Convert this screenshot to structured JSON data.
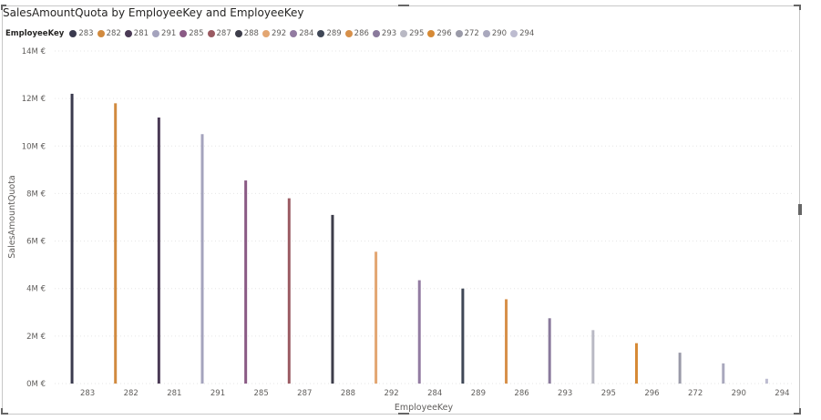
{
  "visual": {
    "title": "SalesAmountQuota by EmployeeKey and EmployeeKey"
  },
  "legend": {
    "title": "EmployeeKey",
    "items": [
      {
        "label": "283",
        "color": "#3a3a4e"
      },
      {
        "label": "282",
        "color": "#d18a3f"
      },
      {
        "label": "281",
        "color": "#4a3a55"
      },
      {
        "label": "291",
        "color": "#a4a3bd"
      },
      {
        "label": "285",
        "color": "#8a5a85"
      },
      {
        "label": "287",
        "color": "#9a5a62"
      },
      {
        "label": "288",
        "color": "#3d3d4a"
      },
      {
        "label": "292",
        "color": "#e3a672"
      },
      {
        "label": "284",
        "color": "#927ba1"
      },
      {
        "label": "289",
        "color": "#3f4756"
      },
      {
        "label": "286",
        "color": "#d7904a"
      },
      {
        "label": "293",
        "color": "#8a7a9c"
      },
      {
        "label": "295",
        "color": "#b9b9c4"
      },
      {
        "label": "296",
        "color": "#d68a35"
      },
      {
        "label": "272",
        "color": "#9a9aa8"
      },
      {
        "label": "290",
        "color": "#a9a8bd"
      },
      {
        "label": "294",
        "color": "#bdbcd0"
      }
    ]
  },
  "chart_data": {
    "type": "bar",
    "title": "SalesAmountQuota by EmployeeKey and EmployeeKey",
    "xlabel": "EmployeeKey",
    "ylabel": "SalesAmountQuota",
    "categories": [
      "283",
      "282",
      "281",
      "291",
      "285",
      "287",
      "288",
      "292",
      "284",
      "289",
      "286",
      "293",
      "295",
      "296",
      "272",
      "290",
      "294"
    ],
    "values": [
      12200000,
      11800000,
      11200000,
      10500000,
      8550000,
      7800000,
      7100000,
      5550000,
      4350000,
      4000000,
      3550000,
      2750000,
      2250000,
      1700000,
      1300000,
      850000,
      200000
    ],
    "colors": [
      "#3a3a4e",
      "#d18a3f",
      "#4a3a55",
      "#a4a3bd",
      "#8a5a85",
      "#9a5a62",
      "#3d3d4a",
      "#e3a672",
      "#927ba1",
      "#3f4756",
      "#d7904a",
      "#8a7a9c",
      "#b9b9c4",
      "#d68a35",
      "#9a9aa8",
      "#a9a8bd",
      "#bdbcd0"
    ],
    "ylim": [
      0,
      14000000
    ],
    "yticks": [
      0,
      2000000,
      4000000,
      6000000,
      8000000,
      10000000,
      12000000,
      14000000
    ],
    "ytick_labels": [
      "0M €",
      "2M €",
      "4M €",
      "6M €",
      "8M €",
      "10M €",
      "12M €",
      "14M €"
    ],
    "grid": true,
    "legend_position": "top-left"
  }
}
